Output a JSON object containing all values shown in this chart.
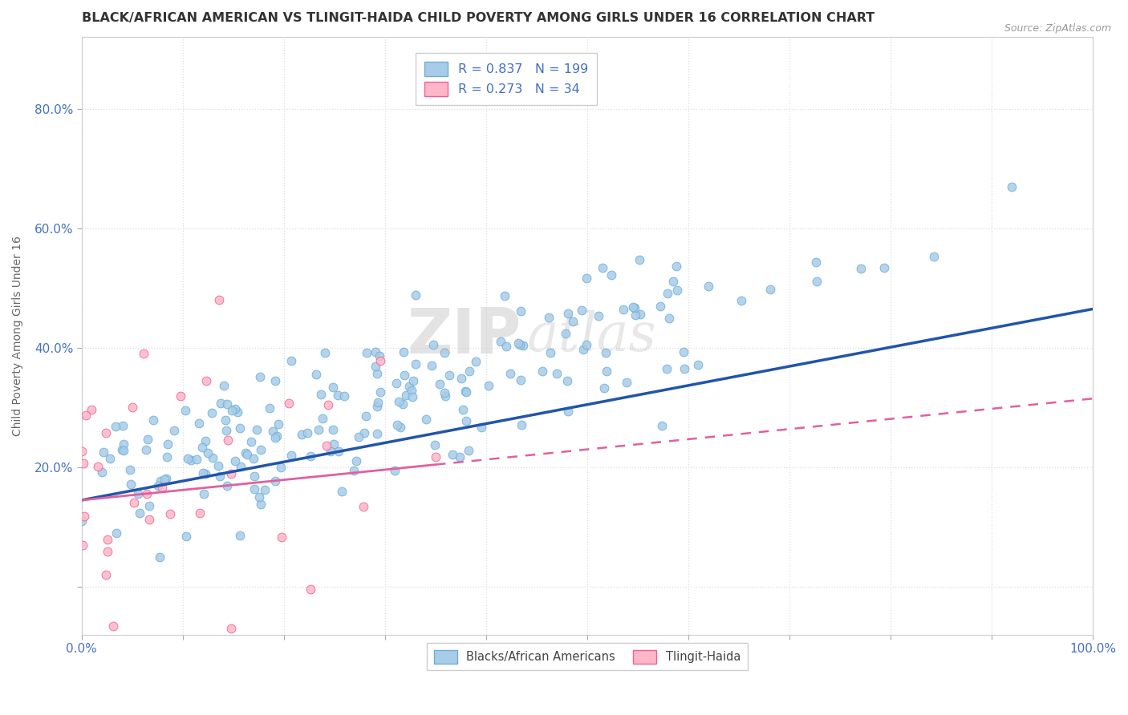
{
  "title": "BLACK/AFRICAN AMERICAN VS TLINGIT-HAIDA CHILD POVERTY AMONG GIRLS UNDER 16 CORRELATION CHART",
  "source_text": "Source: ZipAtlas.com",
  "ylabel": "Child Poverty Among Girls Under 16",
  "xlim": [
    0,
    1.0
  ],
  "ylim": [
    -0.08,
    0.92
  ],
  "x_ticks": [
    0.0,
    0.1,
    0.2,
    0.3,
    0.4,
    0.5,
    0.6,
    0.7,
    0.8,
    0.9,
    1.0
  ],
  "y_ticks": [
    0.0,
    0.2,
    0.4,
    0.6,
    0.8
  ],
  "blue_R": 0.837,
  "blue_N": 199,
  "pink_R": 0.273,
  "pink_N": 34,
  "blue_scatter_color": "#a8cce8",
  "blue_scatter_edge": "#6baed6",
  "pink_scatter_color": "#ffb6c8",
  "pink_scatter_edge": "#f06090",
  "blue_line_color": "#2255aa",
  "pink_line_color": "#e060a0",
  "legend_label_blue": "Blacks/African Americans",
  "legend_label_pink": "Tlingit-Haida",
  "watermark_zip": "ZIP",
  "watermark_atlas": "atlas",
  "background_color": "#ffffff",
  "grid_color": "#dddddd",
  "title_color": "#333333",
  "axis_label_color": "#666666",
  "tick_color": "#4472c4",
  "legend_text_color": "#4472c4",
  "blue_seed": 7,
  "pink_seed": 13
}
